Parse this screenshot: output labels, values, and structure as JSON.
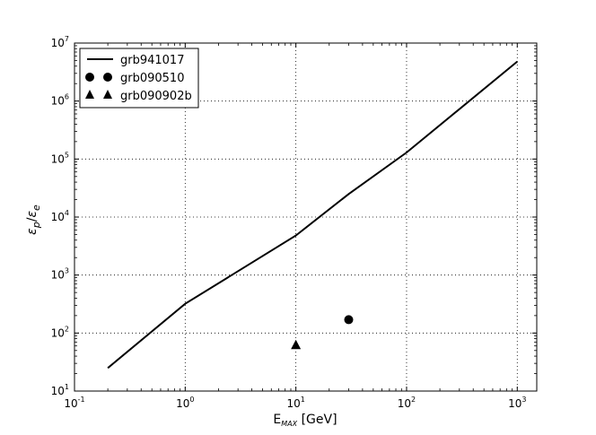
{
  "chart_data": {
    "type": "line",
    "x_scale": "log",
    "y_scale": "log",
    "xlim": [
      0.1,
      1500
    ],
    "ylim": [
      10,
      10000000
    ],
    "grid": true,
    "legend_position": "upper-left",
    "x_ticks": [
      {
        "base": "10",
        "exp": "-1",
        "value": 0.1
      },
      {
        "base": "10",
        "exp": "0",
        "value": 1
      },
      {
        "base": "10",
        "exp": "1",
        "value": 10
      },
      {
        "base": "10",
        "exp": "2",
        "value": 100
      },
      {
        "base": "10",
        "exp": "3",
        "value": 1000
      }
    ],
    "y_ticks": [
      {
        "base": "10",
        "exp": "1",
        "value": 10
      },
      {
        "base": "10",
        "exp": "2",
        "value": 100
      },
      {
        "base": "10",
        "exp": "3",
        "value": 1000
      },
      {
        "base": "10",
        "exp": "4",
        "value": 10000
      },
      {
        "base": "10",
        "exp": "5",
        "value": 100000
      },
      {
        "base": "10",
        "exp": "6",
        "value": 1000000
      },
      {
        "base": "10",
        "exp": "7",
        "value": 10000000
      }
    ],
    "xlabel": {
      "main": "E",
      "sub": "MAX",
      "unit": " [GeV]"
    },
    "ylabel": {
      "eps": "ε",
      "sub_p": "p",
      "slash": "/",
      "sub_e": "e"
    },
    "series": [
      {
        "name": "grb941017",
        "kind": "line",
        "color": "#000000",
        "x": [
          0.2,
          1,
          10,
          30,
          100,
          1000
        ],
        "y": [
          25,
          320,
          4800,
          25000,
          130000,
          4800000
        ]
      },
      {
        "name": "grb090510",
        "kind": "marker",
        "marker": "circle",
        "color": "#000000",
        "x": [
          30
        ],
        "y": [
          170
        ]
      },
      {
        "name": "grb090902b",
        "kind": "marker",
        "marker": "triangle",
        "color": "#000000",
        "x": [
          10
        ],
        "y": [
          62
        ]
      }
    ]
  }
}
